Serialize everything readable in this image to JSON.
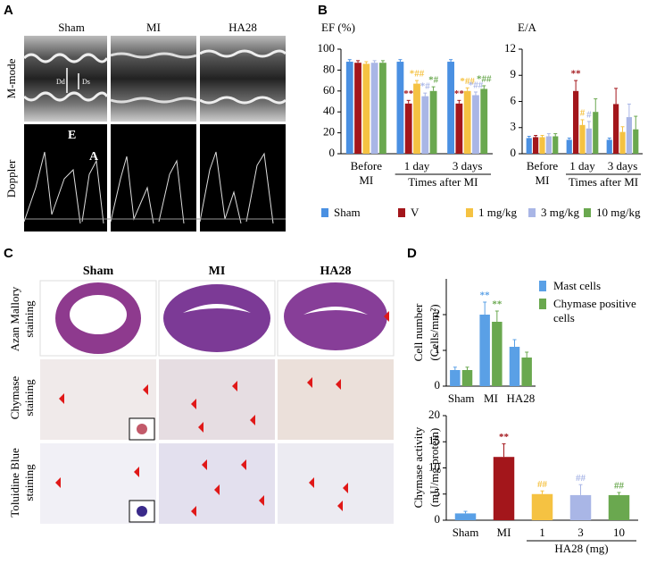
{
  "panels": {
    "A": {
      "letter": "A",
      "columns": [
        "Sham",
        "MI",
        "HA28"
      ],
      "rows": [
        "M-mode",
        "Doppler"
      ],
      "marks": {
        "dd": "Dd",
        "ds": "Ds",
        "e": "E",
        "a": "A"
      }
    },
    "B": {
      "letter": "B"
    },
    "C": {
      "letter": "C",
      "columns": [
        "Sham",
        "MI",
        "HA28"
      ],
      "rows": [
        [
          "Azan Mallory",
          "staining"
        ],
        [
          "Chymase",
          "staining"
        ],
        [
          "Toluidine Blue",
          "staining"
        ]
      ]
    },
    "D": {
      "letter": "D"
    }
  },
  "chart_data": [
    {
      "type": "bar",
      "ylabel": "EF (%)",
      "categories": [
        "Before",
        "1 day",
        "3 days"
      ],
      "category_note": "MI",
      "xlabel": "Times after  MI",
      "ylim": [
        0,
        100
      ],
      "yticks": [
        0,
        20,
        40,
        60,
        80,
        100
      ],
      "series": [
        {
          "name": "Sham",
          "color": "#4a90e2",
          "values": [
            88,
            88,
            88
          ],
          "errors": [
            2,
            2,
            2
          ],
          "annotations": [
            null,
            null,
            null
          ]
        },
        {
          "name": "V",
          "color": "#a3161b",
          "values": [
            87,
            48,
            48
          ],
          "errors": [
            2,
            3,
            3
          ],
          "annotations": [
            null,
            "**",
            "**"
          ]
        },
        {
          "name": "1 mg/kg",
          "color": "#f5c242",
          "values": [
            86,
            67,
            60
          ],
          "errors": [
            2,
            3,
            3
          ],
          "annotations": [
            null,
            "*##",
            "*##"
          ]
        },
        {
          "name": "3 mg/kg",
          "color": "#a9b6e6",
          "values": [
            87,
            55,
            56
          ],
          "errors": [
            2,
            3,
            3
          ],
          "annotations": [
            null,
            "*#",
            "*##"
          ]
        },
        {
          "name": "10 mg/kg",
          "color": "#6aa84f",
          "values": [
            87,
            60,
            62
          ],
          "errors": [
            2,
            4,
            3
          ],
          "annotations": [
            null,
            "*#",
            "*##"
          ]
        }
      ]
    },
    {
      "type": "bar",
      "ylabel": "E/A",
      "categories": [
        "Before",
        "1 day",
        "3 days"
      ],
      "category_note": "MI",
      "xlabel": "Times after  MI",
      "ylim": [
        0,
        12
      ],
      "yticks": [
        0,
        3,
        6,
        9,
        12
      ],
      "series": [
        {
          "name": "Sham",
          "color": "#4a90e2",
          "values": [
            1.8,
            1.6,
            1.6
          ],
          "errors": [
            0.2,
            0.2,
            0.2
          ],
          "annotations": [
            null,
            null,
            null
          ]
        },
        {
          "name": "V",
          "color": "#a3161b",
          "values": [
            1.9,
            7.2,
            5.7
          ],
          "errors": [
            0.2,
            1.2,
            1.8
          ],
          "annotations": [
            null,
            "**",
            null
          ]
        },
        {
          "name": "1 mg/kg",
          "color": "#f5c242",
          "values": [
            1.9,
            3.3,
            2.5
          ],
          "errors": [
            0.2,
            0.6,
            0.6
          ],
          "annotations": [
            null,
            "#",
            null
          ]
        },
        {
          "name": "3 mg/kg",
          "color": "#a9b6e6",
          "values": [
            2.0,
            2.9,
            4.2
          ],
          "errors": [
            0.3,
            0.8,
            1.5
          ],
          "annotations": [
            null,
            "#",
            null
          ]
        },
        {
          "name": "10 mg/kg",
          "color": "#6aa84f",
          "values": [
            2.0,
            4.8,
            2.8
          ],
          "errors": [
            0.3,
            1.5,
            1.5
          ],
          "annotations": [
            null,
            null,
            null
          ]
        }
      ]
    },
    {
      "type": "bar",
      "ylabel": [
        "Cell number",
        "(Cells/mm²)"
      ],
      "categories": [
        "Sham",
        "MI",
        "HA28"
      ],
      "ylim": [
        0,
        3
      ],
      "yticks": [
        0,
        1,
        2
      ],
      "series": [
        {
          "name": "Mast cells",
          "color": "#5aa0e6",
          "values": [
            0.45,
            2.0,
            1.1
          ],
          "errors": [
            0.08,
            0.35,
            0.2
          ],
          "annotations": [
            null,
            "**",
            null
          ]
        },
        {
          "name": "Chymase positive cells",
          "color": "#6aa84f",
          "values": [
            0.45,
            1.8,
            0.8
          ],
          "errors": [
            0.08,
            0.3,
            0.15
          ],
          "annotations": [
            null,
            "**",
            null
          ]
        }
      ]
    },
    {
      "type": "bar",
      "ylabel": [
        "Chymase activity",
        "(mU/mg protein)"
      ],
      "categories": [
        "Sham",
        "MI",
        "1",
        "3",
        "10"
      ],
      "xlabel": "HA28 (mg)",
      "ylim": [
        0,
        20
      ],
      "yticks": [
        0,
        5,
        10,
        15,
        20
      ],
      "colors": [
        "#5aa0e6",
        "#a3161b",
        "#f5c242",
        "#a9b6e6",
        "#6aa84f"
      ],
      "values": [
        1.3,
        12.1,
        5.0,
        4.8,
        4.8
      ],
      "errors": [
        0.4,
        2.5,
        0.6,
        2.0,
        0.5
      ],
      "annotations": [
        null,
        "**",
        "##",
        "##",
        "##"
      ]
    }
  ]
}
